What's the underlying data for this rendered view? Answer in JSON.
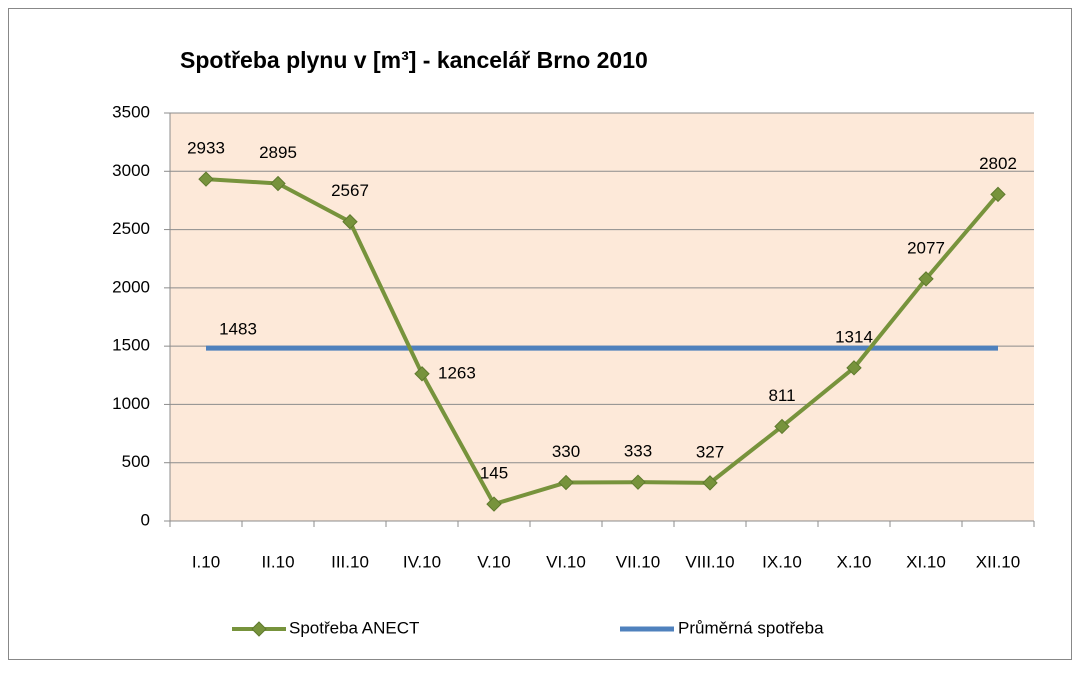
{
  "chart_data": {
    "type": "line",
    "title": "Spotřeba plynu v [m³] - kancelář Brno 2010",
    "categories": [
      "I.10",
      "II.10",
      "III.10",
      "IV.10",
      "V.10",
      "VI.10",
      "VII.10",
      "VIII.10",
      "IX.10",
      "X.10",
      "XI.10",
      "XII.10"
    ],
    "series": [
      {
        "name": "Spotřeba ANECT",
        "color": "#77933c",
        "values": [
          2933,
          2895,
          2567,
          1263,
          145,
          330,
          333,
          327,
          811,
          1314,
          2077,
          2802
        ]
      },
      {
        "name": "Průměrná spotřeba",
        "color": "#4f81bd",
        "values": [
          1483,
          1483,
          1483,
          1483,
          1483,
          1483,
          1483,
          1483,
          1483,
          1483,
          1483,
          1483
        ]
      }
    ],
    "ylim": [
      0,
      3500
    ],
    "yticks": [
      0,
      500,
      1000,
      1500,
      2000,
      2500,
      3000,
      3500
    ],
    "grid": true,
    "legend": "bottom"
  }
}
